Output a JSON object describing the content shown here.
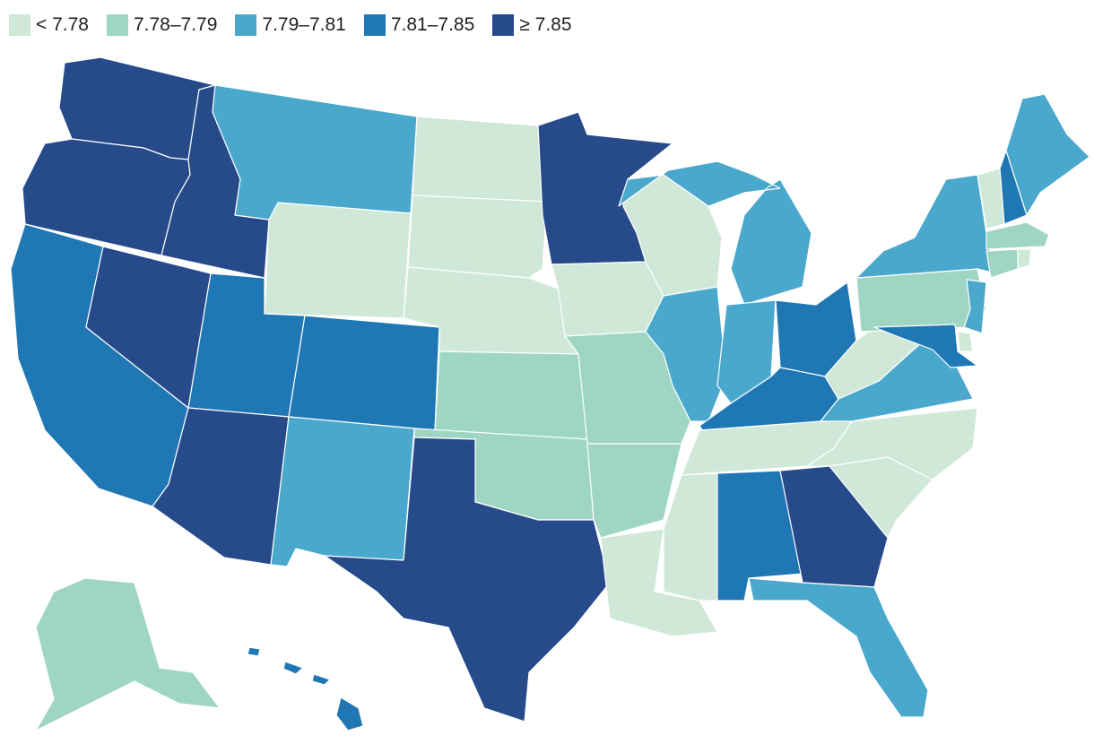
{
  "legend": {
    "items": [
      {
        "label": "< 7.78",
        "color": "#cfe8d8"
      },
      {
        "label": "7.78–7.79",
        "color": "#9fd6c3"
      },
      {
        "label": "7.79–7.81",
        "color": "#4aa8cc"
      },
      {
        "label": "7.81–7.85",
        "color": "#1f77b4"
      },
      {
        "label": "≥ 7.85",
        "color": "#264a8a"
      }
    ]
  },
  "states": {
    "WA": 4,
    "OR": 4,
    "CA": 3,
    "NV": 4,
    "ID": 4,
    "MT": 2,
    "WY": 0,
    "UT": 3,
    "AZ": 4,
    "CO": 3,
    "NM": 2,
    "ND": 0,
    "SD": 0,
    "NE": 0,
    "KS": 1,
    "OK": 1,
    "TX": 4,
    "MN": 4,
    "IA": 0,
    "MO": 1,
    "AR": 1,
    "LA": 0,
    "WI": 0,
    "IL": 2,
    "MI": 2,
    "IN": 2,
    "OH": 3,
    "KY": 3,
    "TN": 0,
    "MS": 0,
    "AL": 3,
    "GA": 4,
    "FL": 2,
    "SC": 0,
    "NC": 0,
    "VA": 2,
    "WV": 0,
    "PA": 1,
    "NY": 2,
    "VT": 0,
    "NH": 3,
    "ME": 2,
    "MA": 1,
    "CT": 1,
    "RI": 0,
    "NJ": 2,
    "DE": 0,
    "MD": 3,
    "AK": 1,
    "HI": 3
  }
}
